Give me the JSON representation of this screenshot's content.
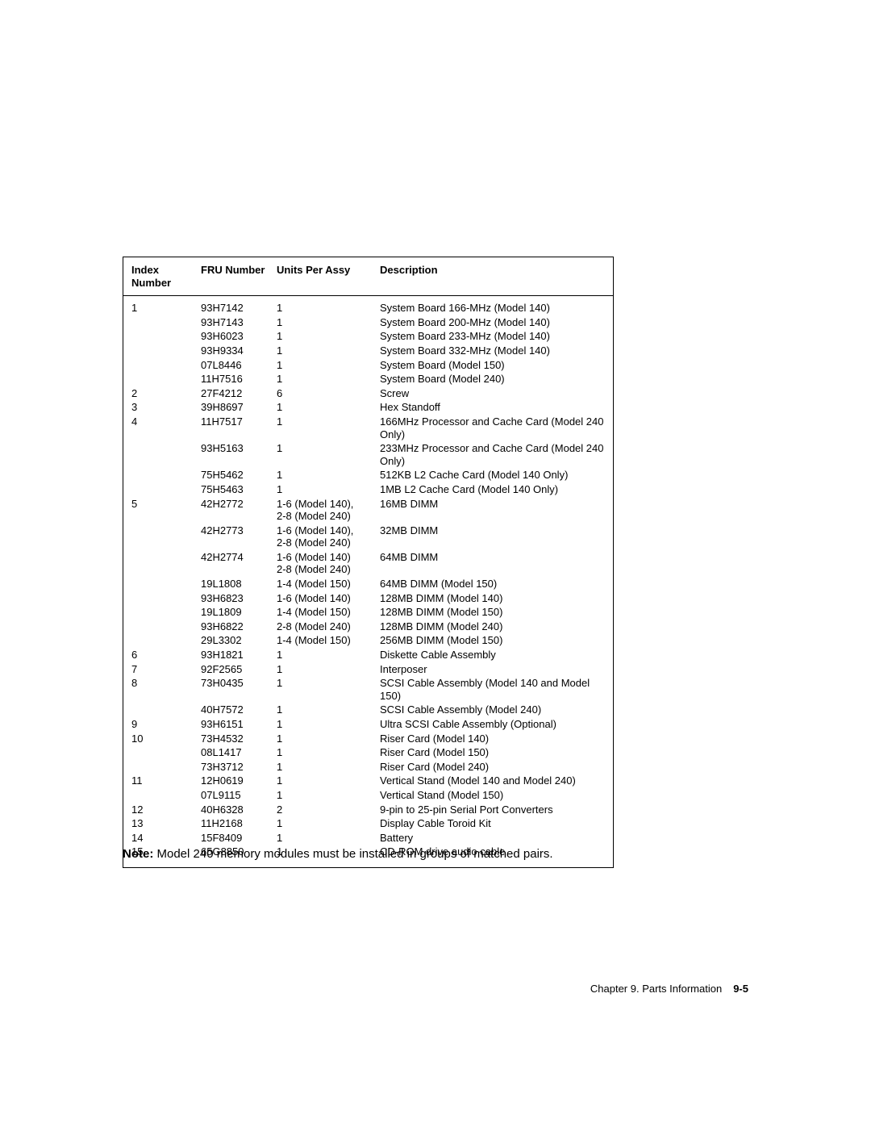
{
  "table": {
    "headers": {
      "index": "Index\nNumber",
      "fru": "FRU\nNumber",
      "units": "Units Per Assy",
      "desc": "Description"
    },
    "rows": [
      {
        "index": "1",
        "fru": "93H7142",
        "units": "1",
        "desc": "System Board 166-MHz (Model 140)"
      },
      {
        "index": "",
        "fru": "93H7143",
        "units": "1",
        "desc": "System Board 200-MHz (Model 140)"
      },
      {
        "index": "",
        "fru": "93H6023",
        "units": "1",
        "desc": "System Board 233-MHz (Model 140)"
      },
      {
        "index": "",
        "fru": "93H9334",
        "units": "1",
        "desc": "System Board 332-MHz (Model 140)"
      },
      {
        "index": "",
        "fru": "07L8446",
        "units": "1",
        "desc": "System Board (Model 150)"
      },
      {
        "index": "",
        "fru": "11H7516",
        "units": "1",
        "desc": "System Board (Model 240)"
      },
      {
        "index": "2",
        "fru": "27F4212",
        "units": "6",
        "desc": "Screw"
      },
      {
        "index": "3",
        "fru": "39H8697",
        "units": "1",
        "desc": "Hex Standoff"
      },
      {
        "index": "4",
        "fru": "11H7517",
        "units": "1",
        "desc": "166MHz Processor and Cache Card (Model 240 Only)"
      },
      {
        "index": "",
        "fru": "93H5163",
        "units": "1",
        "desc": "233MHz Processor and Cache Card (Model 240 Only)"
      },
      {
        "index": "",
        "fru": "75H5462",
        "units": "1",
        "desc": "512KB L2 Cache Card (Model 140 Only)"
      },
      {
        "index": "",
        "fru": "75H5463",
        "units": "1",
        "desc": "1MB L2 Cache Card (Model 140 Only)"
      },
      {
        "index": "5",
        "fru": "42H2772",
        "units": "1-6 (Model 140),\n2-8 (Model 240)",
        "desc": "16MB DIMM"
      },
      {
        "index": "",
        "fru": "42H2773",
        "units": "1-6 (Model 140),\n2-8 (Model 240)",
        "desc": "32MB DIMM"
      },
      {
        "index": "",
        "fru": "42H2774",
        "units": "1-6 (Model 140)\n2-8 (Model 240)",
        "desc": "64MB DIMM"
      },
      {
        "index": "",
        "fru": "19L1808",
        "units": "1-4 (Model 150)",
        "desc": "64MB DIMM (Model 150)"
      },
      {
        "index": "",
        "fru": "93H6823",
        "units": "1-6 (Model 140)",
        "desc": "128MB DIMM (Model 140)"
      },
      {
        "index": "",
        "fru": "19L1809",
        "units": "1-4 (Model 150)",
        "desc": "128MB DIMM (Model 150)"
      },
      {
        "index": "",
        "fru": "93H6822",
        "units": "2-8 (Model 240)",
        "desc": "128MB DIMM (Model 240)"
      },
      {
        "index": "",
        "fru": "29L3302",
        "units": "1-4 (Model 150)",
        "desc": "256MB DIMM (Model 150)"
      },
      {
        "index": "6",
        "fru": "93H1821",
        "units": "1",
        "desc": "Diskette Cable Assembly"
      },
      {
        "index": "7",
        "fru": "92F2565",
        "units": "1",
        "desc": "Interposer"
      },
      {
        "index": "8",
        "fru": "73H0435",
        "units": "1",
        "desc": "SCSI Cable Assembly (Model 140 and Model 150)"
      },
      {
        "index": "",
        "fru": "40H7572",
        "units": "1",
        "desc": "SCSI Cable Assembly (Model 240)"
      },
      {
        "index": "9",
        "fru": "93H6151",
        "units": "1",
        "desc": "Ultra SCSI Cable Assembly (Optional)"
      },
      {
        "index": "10",
        "fru": "73H4532",
        "units": "1",
        "desc": "Riser Card (Model 140)"
      },
      {
        "index": "",
        "fru": "08L1417",
        "units": "1",
        "desc": "Riser Card (Model 150)"
      },
      {
        "index": "",
        "fru": "73H3712",
        "units": "1",
        "desc": "Riser Card (Model 240)"
      },
      {
        "index": "11",
        "fru": "12H0619",
        "units": "1",
        "desc": "Vertical Stand (Model 140 and Model 240)"
      },
      {
        "index": "",
        "fru": "07L9115",
        "units": "1",
        "desc": "Vertical Stand (Model 150)"
      },
      {
        "index": "12",
        "fru": "40H6328",
        "units": "2",
        "desc": "9-pin to 25-pin Serial Port Converters"
      },
      {
        "index": "13",
        "fru": "11H2168",
        "units": "1",
        "desc": "Display Cable Toroid Kit"
      },
      {
        "index": "14",
        "fru": "15F8409",
        "units": "1",
        "desc": "Battery"
      },
      {
        "index": "15",
        "fru": "65G8850",
        "units": "1",
        "desc": "CD-ROM drive audio cable"
      }
    ]
  },
  "note": {
    "label": "Note:  ",
    "text": "Model 240 memory modules must be installed in groups of matched pairs."
  },
  "footer": {
    "chapter": "Chapter 9.  Parts Information",
    "page": "9-5"
  }
}
